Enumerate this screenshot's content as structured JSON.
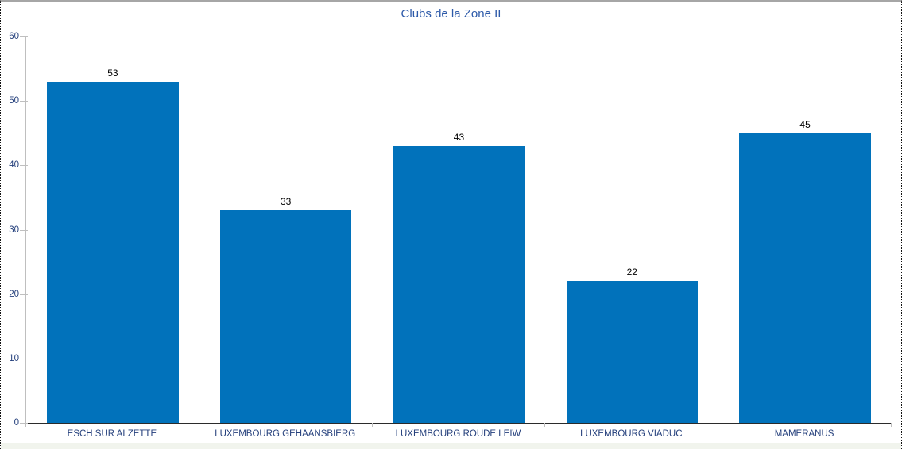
{
  "chart_data": {
    "type": "bar",
    "title": "Clubs de la Zone II",
    "categories": [
      "ESCH SUR ALZETTE",
      "LUXEMBOURG GEHAANSBIERG",
      "LUXEMBOURG ROUDE LEIW",
      "LUXEMBOURG VIADUC",
      "MAMERANUS"
    ],
    "values": [
      53,
      33,
      43,
      22,
      45
    ],
    "show_data_labels": true,
    "xlabel": "",
    "ylabel": "",
    "ylim": [
      0,
      60
    ],
    "yticks": [
      0,
      10,
      20,
      30,
      40,
      50,
      60
    ],
    "grid": "off",
    "legend": "none",
    "bar_gap_fraction": 0.24
  },
  "colors": {
    "bar": "#0172BB",
    "title_text": "#2D5AA9",
    "axis_text": "#25407C",
    "data_label_text": "#000000",
    "axis_line": "#BFBFBF",
    "baseline": "#2B2B2B",
    "frame_top_border": "#A6A6A6",
    "frame_side_border": "#141414",
    "bottom_strip_bg": "#F1F4ED",
    "bottom_strip_border": "#A9BCCE"
  }
}
